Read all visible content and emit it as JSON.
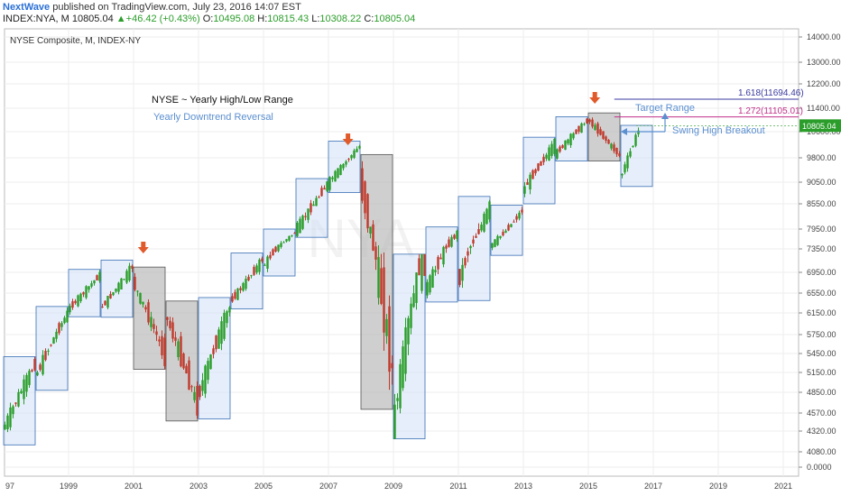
{
  "header": {
    "brand": "NextWave",
    "published": " published on TradingView.com, July 23, 2016 14:07 EST",
    "symbol": "INDEX:NYA, M",
    "last": "10805.04",
    "change": "+46.42 (+0.43%)",
    "o_label": "O:",
    "o": "10495.08",
    "h_label": "H:",
    "h": "10815.43",
    "l_label": "L:",
    "l": "10308.22",
    "c_label": "C:",
    "c": "10805.04"
  },
  "colors": {
    "up": "#2a9d2a",
    "down": "#c0392b",
    "box_blue": "#cfe0f5",
    "box_gray": "#b5b5b5",
    "arrow": "#e05a2b",
    "fib1": "#3a3aa0",
    "fib2": "#c0308a"
  },
  "chart_data": {
    "type": "candlestick",
    "title": "NYSE Composite, M, INDEX-NY",
    "annotations": {
      "title_note": "NYSE ~ Yearly High/Low Range",
      "subtitle_note": "Yearly Downtrend Reversal",
      "target": "Target Range",
      "breakout": "Swing High Breakout",
      "fib_1618": "1.618(11694.46)",
      "fib_1272": "1.272(11105.01)",
      "last_price": "10805.04"
    },
    "x_ticks": [
      "97",
      "1999",
      "2001",
      "2003",
      "2005",
      "2007",
      "2009",
      "2011",
      "2013",
      "2015",
      "2017",
      "2019",
      "2021"
    ],
    "y_ticks": [
      "14000.00",
      "13000.00",
      "12200.00",
      "11400.00",
      "10600.00",
      "9800.00",
      "9050.00",
      "8550.00",
      "7950.00",
      "7350.00",
      "6950.00",
      "6550.00",
      "6150.00",
      "5750.00",
      "5450.00",
      "5150.00",
      "4850.00",
      "4570.00",
      "4320.00",
      "4080.00",
      "0.0000"
    ],
    "fib_levels": [
      11694.46,
      11105.01
    ],
    "yearly_ranges": [
      {
        "year": 1997,
        "low": 4160,
        "high": 5400,
        "color": "blue"
      },
      {
        "year": 1998,
        "low": 4880,
        "high": 6280,
        "color": "blue"
      },
      {
        "year": 1999,
        "low": 6080,
        "high": 7000,
        "color": "blue"
      },
      {
        "year": 2000,
        "low": 6070,
        "high": 7160,
        "color": "blue"
      },
      {
        "year": 2001,
        "low": 5200,
        "high": 7040,
        "color": "gray"
      },
      {
        "year": 2002,
        "low": 4460,
        "high": 6390,
        "color": "gray"
      },
      {
        "year": 2003,
        "low": 4490,
        "high": 6460,
        "color": "blue"
      },
      {
        "year": 2004,
        "low": 6230,
        "high": 7280,
        "color": "blue"
      },
      {
        "year": 2005,
        "low": 6880,
        "high": 7950,
        "color": "blue"
      },
      {
        "year": 2006,
        "low": 7700,
        "high": 9160,
        "color": "blue"
      },
      {
        "year": 2007,
        "low": 8810,
        "high": 10310,
        "color": "blue"
      },
      {
        "year": 2008,
        "low": 4620,
        "high": 9900,
        "color": "gray"
      },
      {
        "year": 2009,
        "low": 4230,
        "high": 7260,
        "color": "blue"
      },
      {
        "year": 2010,
        "low": 6370,
        "high": 8000,
        "color": "blue"
      },
      {
        "year": 2011,
        "low": 6400,
        "high": 8720,
        "color": "blue"
      },
      {
        "year": 2012,
        "low": 7240,
        "high": 8520,
        "color": "blue"
      },
      {
        "year": 2013,
        "low": 8550,
        "high": 10430,
        "color": "blue"
      },
      {
        "year": 2014,
        "low": 9700,
        "high": 11110,
        "color": "blue"
      },
      {
        "year": 2015,
        "low": 9700,
        "high": 11240,
        "color": "gray"
      },
      {
        "year": 2016,
        "low": 8950,
        "high": 10815,
        "color": "blue"
      }
    ],
    "arrows": [
      2001.3,
      2007.6,
      2015.2
    ]
  }
}
